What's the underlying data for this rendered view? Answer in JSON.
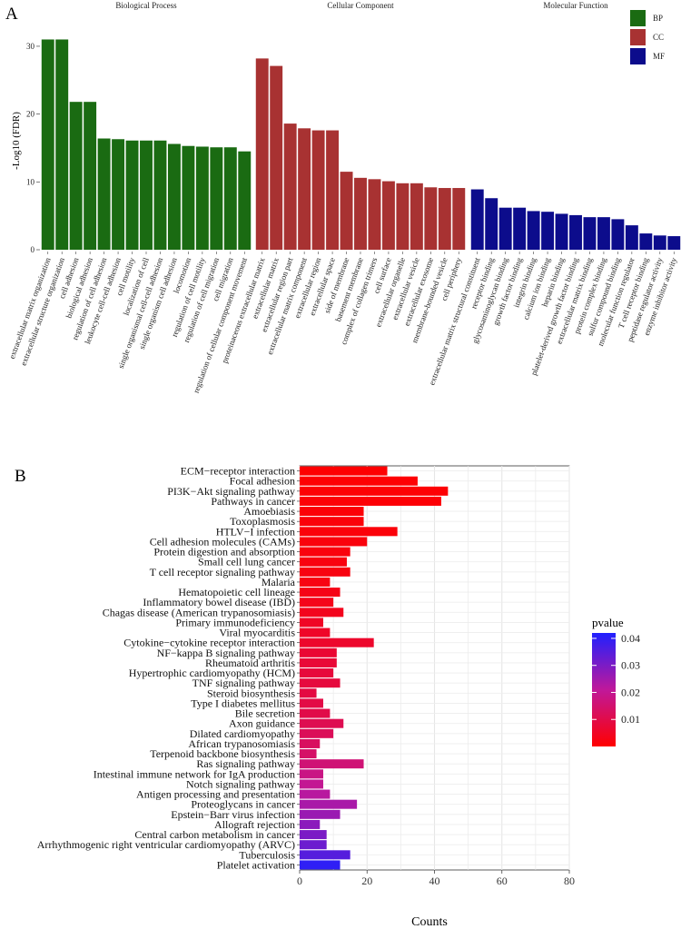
{
  "panel_a_letter": "A",
  "panel_b_letter": "B",
  "chart_data": [
    {
      "type": "bar",
      "panel": "A",
      "ylabel": "-Log10 (FDR)",
      "ylim": [
        0,
        32
      ],
      "yticks": [
        0,
        10,
        20,
        30
      ],
      "facets": [
        {
          "title": "Biological Process",
          "key": "BP",
          "color": "#1a6b12",
          "categories": [
            "extracellular matrix organization",
            "extracellular structure organization",
            "cell adhesion",
            "biological adhesion",
            "regulation of cell adhesion",
            "leukocyte cell-cell adhesion",
            "cell motility",
            "localization of cell",
            "single organismal cell-cell adhesion",
            "single organism cell adhesion",
            "locomotion",
            "regulation of cell motility",
            "regulation of cell migration",
            "cell migration",
            "regulation of cellular component movement"
          ],
          "values": [
            31.0,
            31.0,
            21.8,
            21.8,
            16.4,
            16.3,
            16.1,
            16.1,
            16.1,
            15.6,
            15.3,
            15.2,
            15.1,
            15.1,
            14.5
          ]
        },
        {
          "title": "Cellular Component",
          "key": "CC",
          "color": "#a83232",
          "categories": [
            "proteinaceous extracellular matrix",
            "extracellular matrix",
            "extracellular region part",
            "extracellular matrix component",
            "extracellular region",
            "extracellular space",
            "side of membrane",
            "basement membrane",
            "complex of collagen trimers",
            "cell surface",
            "extracellular organelle",
            "extracellular vesicle",
            "extracellular exosome",
            "membrane-bounded vesicle",
            "cell periphery"
          ],
          "values": [
            28.2,
            27.1,
            18.6,
            17.9,
            17.6,
            17.6,
            11.5,
            10.6,
            10.4,
            10.1,
            9.8,
            9.8,
            9.2,
            9.1,
            9.1
          ]
        },
        {
          "title": "Molecular Function",
          "key": "MF",
          "color": "#0c0c8c",
          "categories": [
            "extracellular matrix structural constituent",
            "receptor binding",
            "glycosaminoglycan binding",
            "growth factor binding",
            "integrin binding",
            "calcium ion binding",
            "heparin binding",
            "platelet-derived growth factor binding",
            "extracellular matrix binding",
            "protein complex binding",
            "sulfur compound binding",
            "molecular function regulator",
            "T cell receptor binding",
            "peptidase regulator activity",
            "enzyme inhibitor activity"
          ],
          "values": [
            8.9,
            7.6,
            6.2,
            6.2,
            5.7,
            5.6,
            5.3,
            5.1,
            4.8,
            4.8,
            4.5,
            3.6,
            2.4,
            2.1,
            2.0
          ]
        }
      ],
      "legend": {
        "position": "top-right",
        "entries": [
          "BP",
          "CC",
          "MF"
        ]
      }
    },
    {
      "type": "bar",
      "orientation": "horizontal",
      "panel": "B",
      "xlabel": "Counts",
      "xlim": [
        0,
        80
      ],
      "xticks": [
        0,
        20,
        40,
        60,
        80
      ],
      "categories": [
        "ECM−receptor interaction",
        "Focal adhesion",
        "PI3K−Akt signaling pathway",
        "Pathways in cancer",
        "Amoebiasis",
        "Toxoplasmosis",
        "HTLV−I infection",
        "Cell adhesion molecules (CAMs)",
        "Protein digestion and absorption",
        "Small cell lung cancer",
        "T cell receptor signaling pathway",
        "Malaria",
        "Hematopoietic cell lineage",
        "Inflammatory bowel disease (IBD)",
        "Chagas disease (American trypanosomiasis)",
        "Primary immunodeficiency",
        "Viral myocarditis",
        "Cytokine−cytokine receptor interaction",
        "NF−kappa B signaling pathway",
        "Rheumatoid arthritis",
        "Hypertrophic cardiomyopathy (HCM)",
        "TNF signaling pathway",
        "Steroid biosynthesis",
        "Type I diabetes mellitus",
        "Bile secretion",
        "Axon guidance",
        "Dilated cardiomyopathy",
        "African trypanosomiasis",
        "Terpenoid backbone biosynthesis",
        "Ras signaling pathway",
        "Intestinal immune network for IgA production",
        "Notch signaling pathway",
        "Antigen processing and presentation",
        "Proteoglycans in cancer",
        "Epstein−Barr virus infection",
        "Allograft rejection",
        "Central carbon metabolism in cancer",
        "Arrhythmogenic right ventricular cardiomyopathy (ARVC)",
        "Tuberculosis",
        "Platelet activation"
      ],
      "values": [
        26,
        35,
        44,
        42,
        19,
        19,
        29,
        20,
        15,
        14,
        15,
        9,
        12,
        10,
        13,
        7,
        9,
        22,
        11,
        11,
        10,
        12,
        5,
        7,
        9,
        13,
        10,
        6,
        5,
        19,
        7,
        7,
        9,
        17,
        12,
        6,
        8,
        8,
        15,
        12
      ],
      "pvalues": [
        0.0002,
        0.0004,
        0.0006,
        0.0008,
        0.001,
        0.0012,
        0.0014,
        0.0016,
        0.0018,
        0.002,
        0.0022,
        0.0025,
        0.003,
        0.0035,
        0.004,
        0.005,
        0.0055,
        0.006,
        0.007,
        0.0075,
        0.008,
        0.0085,
        0.009,
        0.0095,
        0.01,
        0.011,
        0.012,
        0.013,
        0.014,
        0.016,
        0.018,
        0.02,
        0.022,
        0.024,
        0.026,
        0.028,
        0.03,
        0.032,
        0.035,
        0.04
      ],
      "colorbar": {
        "title": "pvalue",
        "ticks": [
          "0.04",
          "0.03",
          "0.02",
          "0.01"
        ],
        "tick_values": [
          0.04,
          0.03,
          0.02,
          0.01
        ],
        "range": [
          0.0,
          0.042
        ],
        "low_color": "#ff0000",
        "high_color": "#2020ff"
      }
    }
  ]
}
